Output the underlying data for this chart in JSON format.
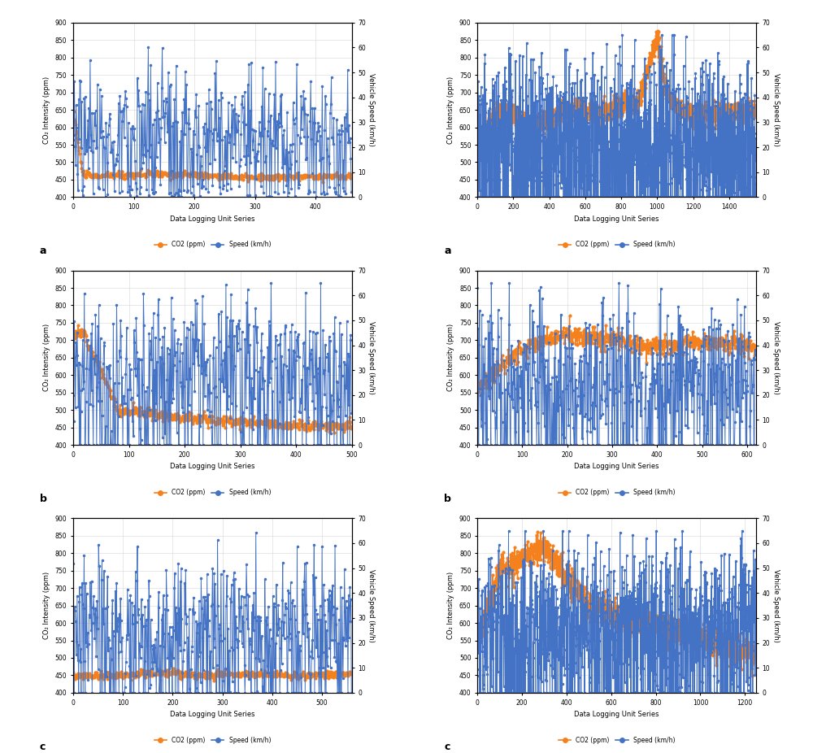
{
  "figure_size": [
    10,
    9.26
  ],
  "dpi": 100,
  "background_color": "#ffffff",
  "grid_color": "#d0d0d0",
  "co2_color": "#f4801e",
  "speed_color": "#4472c4",
  "co2_label": "CO₂ Intensity (ppm)",
  "speed_label": "Vehicle Speed (km/h)",
  "xlabel": "Data Logging Unit Series",
  "legend_co2": "CO2 (ppm)",
  "legend_speed": "Speed (km/h)",
  "ylim_co2": [
    400,
    900
  ],
  "ylim_speed": [
    0,
    70
  ],
  "co2_yticks": [
    400,
    450,
    500,
    550,
    600,
    650,
    700,
    750,
    800,
    850,
    900
  ],
  "speed_yticks": [
    0,
    10,
    20,
    30,
    40,
    50,
    60,
    70
  ],
  "subplots": [
    {
      "label": "a",
      "xlim": [
        0,
        460
      ]
    },
    {
      "label": "a",
      "xlim": [
        0,
        1550
      ]
    },
    {
      "label": "b",
      "xlim": [
        0,
        500
      ]
    },
    {
      "label": "b",
      "xlim": [
        0,
        620
      ]
    },
    {
      "label": "c",
      "xlim": [
        0,
        560
      ]
    },
    {
      "label": "c",
      "xlim": [
        0,
        1250
      ]
    }
  ]
}
